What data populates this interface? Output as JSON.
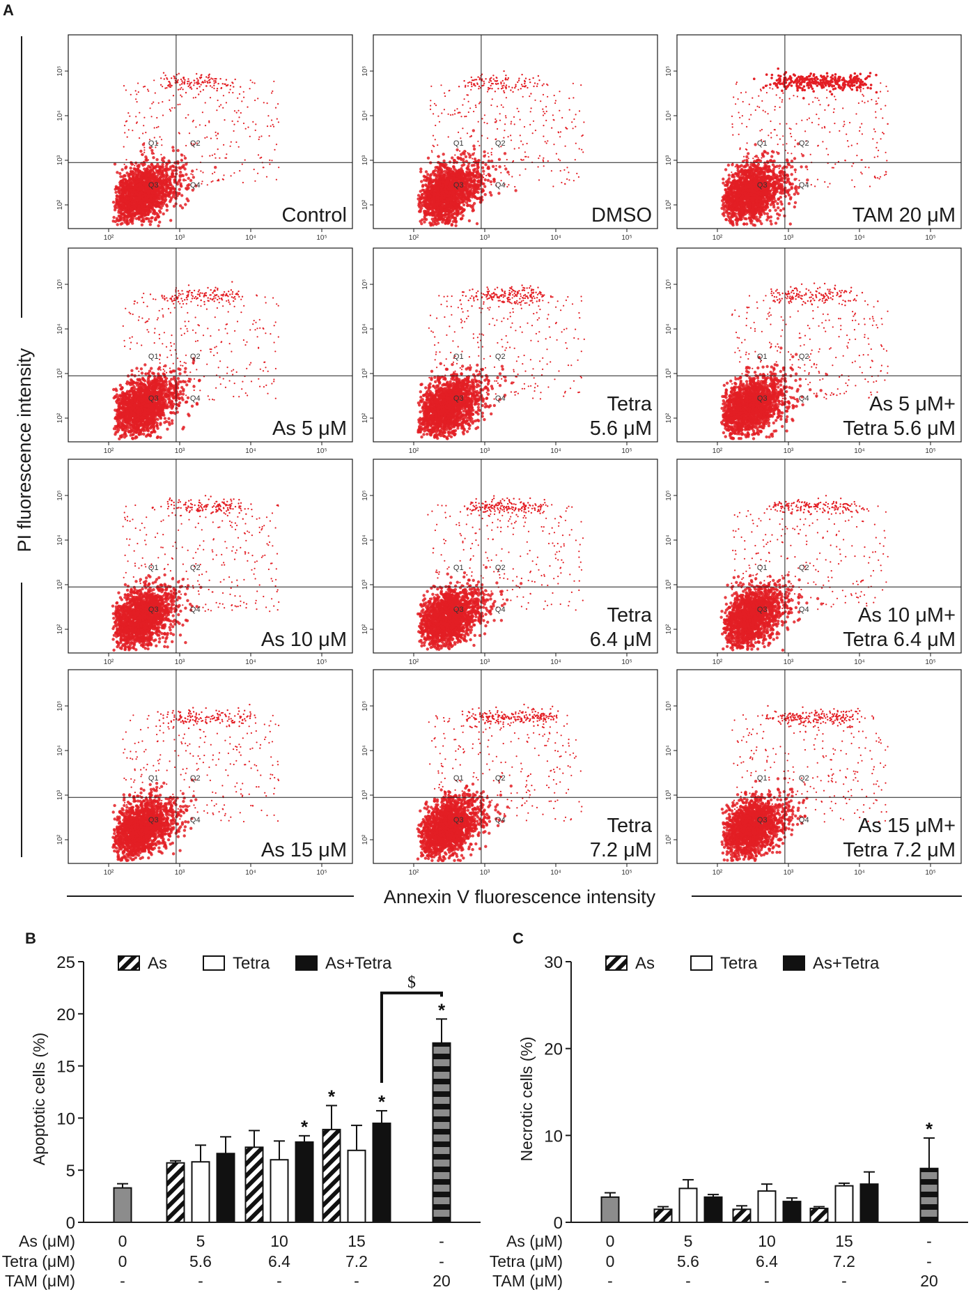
{
  "panel_labels": {
    "a": "A",
    "b": "B",
    "c": "C"
  },
  "colors": {
    "dots": "#e31e24",
    "gray_bar": "#8c8c8c",
    "black": "#111111",
    "axis": "#1a1a1a"
  },
  "flow": {
    "y_axis_label": "PI fluorescence intensity",
    "x_axis_label": "Annexin V fluorescence intensity",
    "x_ticks": [
      "10²",
      "10³",
      "10⁴",
      "10⁵"
    ],
    "y_ticks": [
      "10²",
      "10³",
      "10⁴",
      "10⁵"
    ],
    "quadrants": [
      "Q1",
      "Q2",
      "Q3",
      "Q4"
    ],
    "panels": [
      {
        "id": "control",
        "label_lines": [
          "Control"
        ],
        "density": 1.0,
        "dead_band": 0.25,
        "band_width": 0.9
      },
      {
        "id": "dmso",
        "label_lines": [
          "DMSO"
        ],
        "density": 1.0,
        "dead_band": 0.22,
        "band_width": 0.85
      },
      {
        "id": "tam20",
        "label_lines": [
          "TAM 20 μM"
        ],
        "density": 1.0,
        "dead_band": 1.0,
        "band_width": 1.3
      },
      {
        "id": "as5",
        "label_lines": [
          "As 5 μM"
        ],
        "density": 1.0,
        "dead_band": 0.3,
        "band_width": 1.0
      },
      {
        "id": "tetra56",
        "label_lines": [
          "Tetra",
          "5.6 μM"
        ],
        "density": 1.0,
        "dead_band": 0.45,
        "band_width": 1.0
      },
      {
        "id": "as5tetra",
        "label_lines": [
          "As 5 μM+",
          "Tetra 5.6 μM"
        ],
        "density": 1.0,
        "dead_band": 0.35,
        "band_width": 1.1
      },
      {
        "id": "as10",
        "label_lines": [
          "As 10 μM"
        ],
        "density": 1.0,
        "dead_band": 0.32,
        "band_width": 1.1
      },
      {
        "id": "tetra64",
        "label_lines": [
          "Tetra",
          "6.4 μM"
        ],
        "density": 1.0,
        "dead_band": 0.45,
        "band_width": 1.0
      },
      {
        "id": "as10tetra",
        "label_lines": [
          "As 10 μM+",
          "Tetra 6.4 μM"
        ],
        "density": 1.0,
        "dead_band": 0.4,
        "band_width": 1.2
      },
      {
        "id": "as15",
        "label_lines": [
          "As 15 μM"
        ],
        "density": 1.0,
        "dead_band": 0.35,
        "band_width": 1.1
      },
      {
        "id": "tetra72",
        "label_lines": [
          "Tetra",
          "7.2 μM"
        ],
        "density": 1.0,
        "dead_band": 0.6,
        "band_width": 1.2
      },
      {
        "id": "as15tetra",
        "label_lines": [
          "As 15 μM+",
          "Tetra 7.2 μM"
        ],
        "density": 1.0,
        "dead_band": 0.55,
        "band_width": 1.1
      }
    ]
  },
  "chart_data": [
    {
      "id": "B",
      "type": "bar",
      "title": "",
      "ylabel": "Apoptotic cells (%)",
      "ylim": [
        0,
        25
      ],
      "yticks": [
        0,
        5,
        10,
        15,
        20,
        25
      ],
      "legend": [
        "As",
        "Tetra",
        "As+Tetra"
      ],
      "row_labels": [
        "As (μM)",
        "Tetra (μM)",
        "TAM (μM)"
      ],
      "groups": [
        {
          "as": "0",
          "tetra": "0",
          "tam": "-"
        },
        {
          "as": "5",
          "tetra": "5.6",
          "tam": "-"
        },
        {
          "as": "10",
          "tetra": "6.4",
          "tam": "-"
        },
        {
          "as": "15",
          "tetra": "7.2",
          "tam": "-"
        },
        {
          "as": "-",
          "tetra": "-",
          "tam": "20"
        }
      ],
      "bars": [
        {
          "group": 0,
          "kind": "control",
          "value": 3.3,
          "err": 0.4,
          "star": ""
        },
        {
          "group": 1,
          "kind": "as",
          "value": 5.7,
          "err": 0.2,
          "star": ""
        },
        {
          "group": 1,
          "kind": "tetra",
          "value": 5.8,
          "err": 1.6,
          "star": ""
        },
        {
          "group": 1,
          "kind": "combo",
          "value": 6.6,
          "err": 1.6,
          "star": ""
        },
        {
          "group": 2,
          "kind": "as",
          "value": 7.2,
          "err": 1.6,
          "star": ""
        },
        {
          "group": 2,
          "kind": "tetra",
          "value": 6.0,
          "err": 1.8,
          "star": ""
        },
        {
          "group": 2,
          "kind": "combo",
          "value": 7.7,
          "err": 0.6,
          "star": "*"
        },
        {
          "group": 3,
          "kind": "as",
          "value": 8.9,
          "err": 2.3,
          "star": "*"
        },
        {
          "group": 3,
          "kind": "tetra",
          "value": 6.9,
          "err": 2.4,
          "star": ""
        },
        {
          "group": 3,
          "kind": "combo",
          "value": 9.5,
          "err": 1.2,
          "star": "*"
        },
        {
          "group": 4,
          "kind": "tam",
          "value": 17.2,
          "err": 2.3,
          "star": "*"
        }
      ],
      "bracket": {
        "from_bar": 9,
        "to_bar": 10,
        "y": 22.0,
        "label": "$"
      }
    },
    {
      "id": "C",
      "type": "bar",
      "title": "",
      "ylabel": "Necrotic cells (%)",
      "ylim": [
        0,
        30
      ],
      "yticks": [
        0,
        10,
        20,
        30
      ],
      "legend": [
        "As",
        "Tetra",
        "As+Tetra"
      ],
      "row_labels": [
        "As (μM)",
        "Tetra (μM)",
        "TAM (μM)"
      ],
      "groups": [
        {
          "as": "0",
          "tetra": "0",
          "tam": "-"
        },
        {
          "as": "5",
          "tetra": "5.6",
          "tam": "-"
        },
        {
          "as": "10",
          "tetra": "6.4",
          "tam": "-"
        },
        {
          "as": "15",
          "tetra": "7.2",
          "tam": "-"
        },
        {
          "as": "-",
          "tetra": "-",
          "tam": "20"
        }
      ],
      "bars": [
        {
          "group": 0,
          "kind": "control",
          "value": 2.9,
          "err": 0.5,
          "star": ""
        },
        {
          "group": 1,
          "kind": "as",
          "value": 1.5,
          "err": 0.3,
          "star": ""
        },
        {
          "group": 1,
          "kind": "tetra",
          "value": 3.9,
          "err": 1.0,
          "star": ""
        },
        {
          "group": 1,
          "kind": "combo",
          "value": 2.9,
          "err": 0.3,
          "star": ""
        },
        {
          "group": 2,
          "kind": "as",
          "value": 1.5,
          "err": 0.4,
          "star": ""
        },
        {
          "group": 2,
          "kind": "tetra",
          "value": 3.6,
          "err": 0.8,
          "star": ""
        },
        {
          "group": 2,
          "kind": "combo",
          "value": 2.4,
          "err": 0.4,
          "star": ""
        },
        {
          "group": 3,
          "kind": "as",
          "value": 1.6,
          "err": 0.2,
          "star": ""
        },
        {
          "group": 3,
          "kind": "tetra",
          "value": 4.2,
          "err": 0.3,
          "star": ""
        },
        {
          "group": 3,
          "kind": "combo",
          "value": 4.4,
          "err": 1.4,
          "star": ""
        },
        {
          "group": 4,
          "kind": "tam",
          "value": 6.2,
          "err": 3.5,
          "star": "*"
        }
      ]
    }
  ]
}
